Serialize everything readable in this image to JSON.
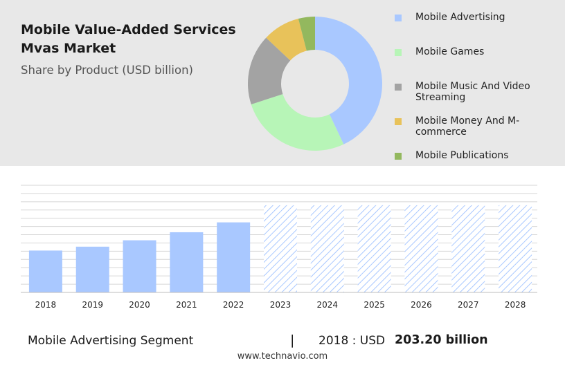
{
  "header": {
    "title": "Mobile Value-Added Services Mvas Market",
    "subtitle": "Share by Product (USD billion)"
  },
  "colors": {
    "panel_bg": "#e8e8e8",
    "actual_bar": "#a9c8ff",
    "forecast_hatch": "#a9c8ff",
    "grid": "#d6d6d6"
  },
  "chart_data": [
    {
      "type": "pie",
      "donut": true,
      "categories": [
        "Mobile Advertising",
        "Mobile Games",
        "Mobile Music And Video Streaming",
        "Mobile Money And M-commerce",
        "Mobile Publications"
      ],
      "values": [
        43,
        27,
        17,
        9,
        4
      ],
      "colors": [
        "#a9c8ff",
        "#b7f5b7",
        "#a3a3a3",
        "#e8c25a",
        "#93b85e"
      ],
      "legend": "right"
    },
    {
      "type": "bar",
      "categories": [
        "2018",
        "2019",
        "2020",
        "2021",
        "2022",
        "2023",
        "2024",
        "2025",
        "2026",
        "2027",
        "2028"
      ],
      "values": [
        203.2,
        222,
        253,
        292,
        340,
        423,
        423,
        423,
        423,
        423,
        423
      ],
      "forecast_from_index": 5,
      "ylim": [
        0,
        520
      ],
      "grid": true
    }
  ],
  "footer": {
    "segment_label": "Mobile Advertising Segment",
    "separator": "|",
    "year_text": "2018 : USD",
    "value_text": "203.20 billion",
    "website": "www.technavio.com"
  }
}
